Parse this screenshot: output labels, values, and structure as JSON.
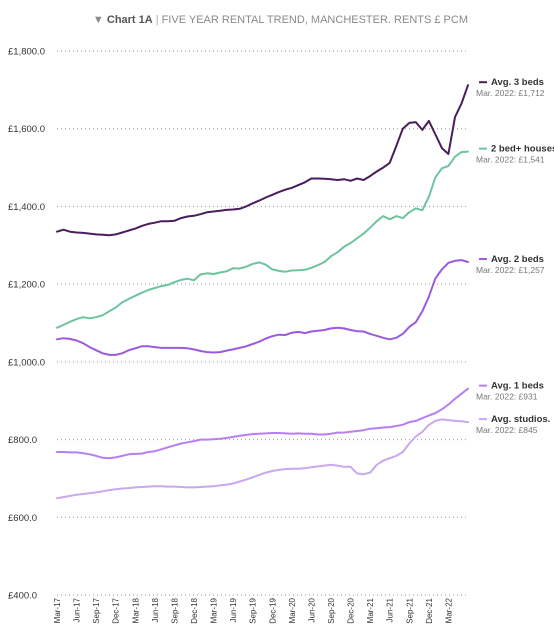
{
  "header": {
    "arrow": "▼",
    "chart_label": "Chart 1A",
    "separator": "|",
    "subtitle": "FIVE YEAR RENTAL TREND, MANCHESTER. RENTS £ PCM"
  },
  "chart_data": {
    "type": "line",
    "title": "FIVE YEAR RENTAL TREND, MANCHESTER. RENTS £ PCM",
    "xlabel": "",
    "ylabel": "",
    "ylim": [
      400,
      1800
    ],
    "yticks": [
      400,
      600,
      800,
      1000,
      1200,
      1400,
      1600,
      1800
    ],
    "ytick_labels": [
      "£400.0",
      "£600.0",
      "£800.0",
      "£1,000.0",
      "£1,200.0",
      "£1,400.0",
      "£1,600.0",
      "£1,800.0"
    ],
    "grid": true,
    "legend": "right, inline at line ends",
    "x_start": "Mar-17",
    "x_end": "Mar-22",
    "xtick_labels": [
      "Mar-17",
      "Jun-17",
      "Sep-17",
      "Dec-17",
      "Mar-18",
      "Jun-18",
      "Sep-18",
      "Dec-18",
      "Mar-19",
      "Jun-19",
      "Sep-19",
      "Dec-19",
      "Mar-20",
      "Jun-20",
      "Sep-20",
      "Dec-20",
      "Mar-21",
      "Jun-21",
      "Sep-21",
      "Dec-21",
      "Mar-22"
    ],
    "series": [
      {
        "name": "Avg. 3 beds",
        "label": "Mar. 2022: £1,712",
        "color": "#4a1d5c",
        "values": [
          1335,
          1340,
          1335,
          1333,
          1332,
          1330,
          1328,
          1327,
          1326,
          1328,
          1333,
          1338,
          1343,
          1350,
          1355,
          1358,
          1362,
          1362,
          1363,
          1370,
          1374,
          1376,
          1380,
          1385,
          1387,
          1389,
          1391,
          1392,
          1394,
          1400,
          1408,
          1415,
          1423,
          1430,
          1437,
          1443,
          1448,
          1455,
          1462,
          1472,
          1472,
          1471,
          1470,
          1468,
          1470,
          1466,
          1472,
          1468,
          1478,
          1490,
          1500,
          1512,
          1555,
          1600,
          1615,
          1617,
          1597,
          1620,
          1585,
          1550,
          1535,
          1630,
          1665,
          1712
        ]
      },
      {
        "name": "2 bed+ houses",
        "label": "Mar. 2022: £1,541",
        "color": "#6dc49d",
        "values": [
          1088,
          1095,
          1103,
          1110,
          1115,
          1112,
          1115,
          1120,
          1130,
          1140,
          1153,
          1162,
          1170,
          1178,
          1185,
          1190,
          1195,
          1198,
          1205,
          1211,
          1214,
          1210,
          1225,
          1228,
          1226,
          1230,
          1233,
          1241,
          1240,
          1245,
          1252,
          1256,
          1250,
          1238,
          1234,
          1232,
          1235,
          1236,
          1237,
          1242,
          1249,
          1257,
          1272,
          1282,
          1296,
          1306,
          1318,
          1330,
          1345,
          1362,
          1375,
          1367,
          1375,
          1370,
          1385,
          1395,
          1390,
          1425,
          1475,
          1498,
          1504,
          1528,
          1540,
          1541
        ]
      },
      {
        "name": "Avg. 2 beds",
        "label": "Mar. 2022: £1,257",
        "color": "#9b5ae0",
        "values": [
          1058,
          1061,
          1059,
          1055,
          1048,
          1038,
          1030,
          1022,
          1018,
          1018,
          1022,
          1030,
          1035,
          1040,
          1040,
          1038,
          1036,
          1036,
          1036,
          1036,
          1035,
          1032,
          1028,
          1025,
          1024,
          1025,
          1029,
          1032,
          1036,
          1040,
          1046,
          1052,
          1060,
          1066,
          1070,
          1069,
          1075,
          1077,
          1074,
          1078,
          1080,
          1082,
          1086,
          1088,
          1086,
          1082,
          1079,
          1078,
          1072,
          1067,
          1062,
          1058,
          1062,
          1072,
          1090,
          1102,
          1130,
          1168,
          1215,
          1238,
          1255,
          1260,
          1262,
          1257
        ]
      },
      {
        "name": "Avg. 1 beds",
        "label": "Mar. 2022: £931",
        "color": "#b77ff3",
        "values": [
          768,
          768,
          767,
          767,
          765,
          762,
          758,
          753,
          752,
          754,
          758,
          762,
          763,
          764,
          768,
          770,
          775,
          780,
          785,
          790,
          793,
          796,
          800,
          800,
          801,
          802,
          804,
          807,
          810,
          812,
          814,
          815,
          816,
          817,
          817,
          816,
          815,
          816,
          815,
          815,
          813,
          813,
          815,
          818,
          818,
          820,
          822,
          824,
          828,
          829,
          831,
          832,
          835,
          838,
          845,
          848,
          855,
          862,
          868,
          878,
          890,
          905,
          918,
          931
        ]
      },
      {
        "name": "Avg. studios.",
        "label": "Mar. 2022: £845",
        "color": "#c8a8ef",
        "values": [
          649,
          652,
          655,
          658,
          660,
          662,
          664,
          667,
          670,
          672,
          674,
          675,
          677,
          678,
          679,
          680,
          680,
          679,
          679,
          678,
          677,
          677,
          678,
          679,
          680,
          682,
          684,
          687,
          692,
          697,
          703,
          709,
          715,
          719,
          722,
          724,
          725,
          725,
          726,
          729,
          731,
          733,
          735,
          733,
          730,
          730,
          713,
          711,
          715,
          735,
          746,
          752,
          758,
          768,
          790,
          808,
          820,
          838,
          848,
          852,
          850,
          848,
          847,
          845
        ]
      }
    ]
  }
}
